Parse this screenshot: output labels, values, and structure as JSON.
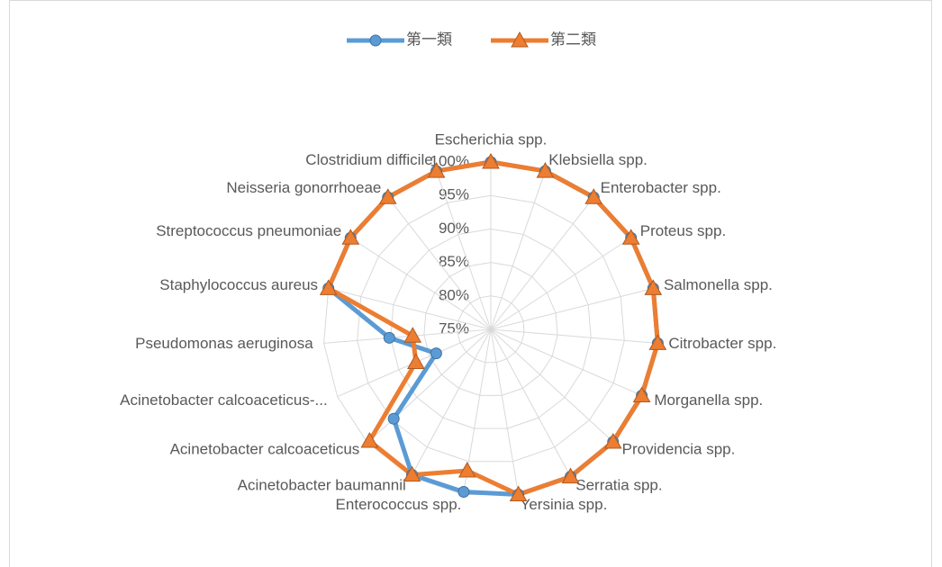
{
  "chart_data": {
    "type": "radar",
    "categories": [
      "Escherichia spp.",
      "Klebsiella spp.",
      "Enterobacter spp.",
      "Proteus spp.",
      "Salmonella spp.",
      "Citrobacter spp.",
      "Morganella spp.",
      "Providencia spp.",
      "Serratia spp.",
      "Yersinia spp.",
      "Enterococcus spp.",
      "Acinetobacter baumannii",
      "Acinetobacter calcoaceticus",
      "Acinetobacter calcoaceticus-...",
      "Pseudomonas aeruginosa",
      "Staphylococcus aureus",
      "Streptococcus pneumoniae",
      "Neisseria gonorrhoeae",
      "Clostridium difficile"
    ],
    "series": [
      {
        "name": "第一類",
        "color": "#5b9bd5",
        "values": [
          100,
          100,
          100,
          100,
          100,
          100,
          99.6,
          99.8,
          100,
          100,
          99.6,
          99.7,
          94.7,
          83.9,
          90.2,
          100,
          100,
          100,
          100
        ]
      },
      {
        "name": "第二類",
        "color": "#ed7d31",
        "values": [
          100,
          100,
          100,
          100,
          100,
          100,
          99.6,
          99.8,
          100,
          100,
          96.4,
          99.7,
          99.6,
          87.2,
          86.7,
          100,
          100,
          100,
          100
        ]
      }
    ],
    "rlim": [
      75,
      100
    ],
    "rticks": [
      {
        "value": 75,
        "label": "75%"
      },
      {
        "value": 80,
        "label": "80%"
      },
      {
        "value": 85,
        "label": "85%"
      },
      {
        "value": 90,
        "label": "90%"
      },
      {
        "value": 95,
        "label": "95%"
      },
      {
        "value": 100,
        "label": "100%"
      }
    ],
    "legend": "top",
    "grid": true
  }
}
